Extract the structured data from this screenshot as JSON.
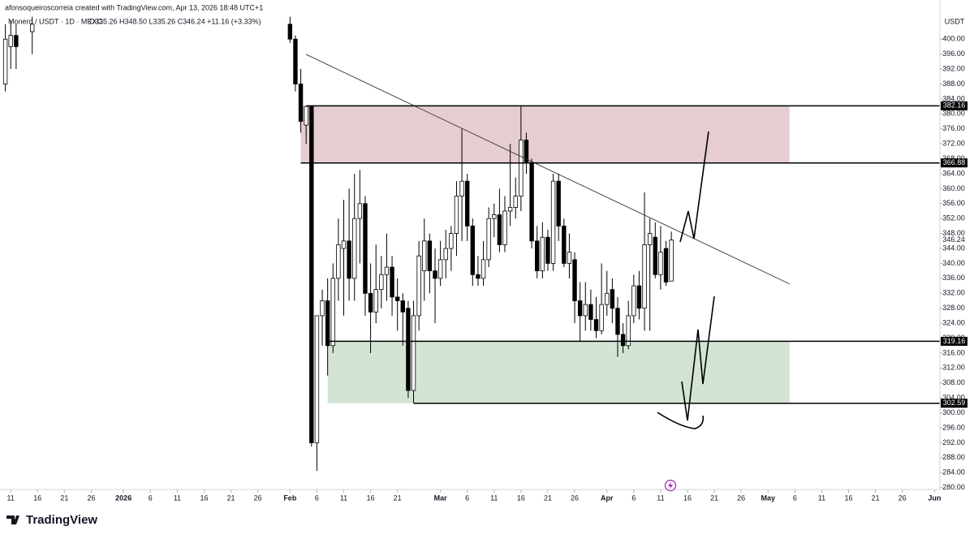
{
  "chart_data": {
    "type": "candlestick",
    "attribution": "afonsoqueiroscorreia created with TradingView.com, Apr 13, 2026 18:48 UTC+1",
    "title": "Monero / USDT · 1D · MEXC",
    "ohlc_text": "O335.26 H348.50 L335.26 C346.24 +11.16 (+3.33%)",
    "axis_unit": "USDT",
    "brand": "TradingView",
    "grid": false,
    "up_color": "#ffffff",
    "down_color": "#000000",
    "x": [
      "2025-12-10",
      "2025-12-11",
      "2025-12-12",
      "2025-12-15",
      "2026-02-01",
      "2026-02-02",
      "2026-02-03",
      "2026-02-04",
      "2026-02-05",
      "2026-02-06",
      "2026-02-07",
      "2026-02-08",
      "2026-02-09",
      "2026-02-10",
      "2026-02-11",
      "2026-02-12",
      "2026-02-13",
      "2026-02-14",
      "2026-02-15",
      "2026-02-16",
      "2026-02-17",
      "2026-02-18",
      "2026-02-19",
      "2026-02-20",
      "2026-02-21",
      "2026-02-22",
      "2026-02-23",
      "2026-02-24",
      "2026-02-25",
      "2026-02-26",
      "2026-02-27",
      "2026-02-28",
      "2026-03-01",
      "2026-03-02",
      "2026-03-03",
      "2026-03-04",
      "2026-03-05",
      "2026-03-06",
      "2026-03-07",
      "2026-03-08",
      "2026-03-09",
      "2026-03-10",
      "2026-03-11",
      "2026-03-12",
      "2026-03-13",
      "2026-03-14",
      "2026-03-15",
      "2026-03-16",
      "2026-03-17",
      "2026-03-18",
      "2026-03-19",
      "2026-03-20",
      "2026-03-21",
      "2026-03-22",
      "2026-03-23",
      "2026-03-24",
      "2026-03-25",
      "2026-03-26",
      "2026-03-27",
      "2026-03-28",
      "2026-03-29",
      "2026-03-30",
      "2026-03-31",
      "2026-04-01",
      "2026-04-02",
      "2026-04-03",
      "2026-04-04",
      "2026-04-05",
      "2026-04-06",
      "2026-04-07",
      "2026-04-08",
      "2026-04-09",
      "2026-04-10",
      "2026-04-11",
      "2026-04-12",
      "2026-04-13"
    ],
    "open": [
      388,
      398,
      401,
      402,
      404,
      400,
      388,
      377,
      382,
      292,
      326,
      330,
      318,
      336,
      344,
      346,
      336,
      352,
      356,
      332,
      327,
      333,
      337,
      339,
      331,
      330,
      328,
      306,
      326,
      338,
      346,
      338,
      336,
      341,
      344,
      348,
      358,
      362,
      350,
      337,
      336,
      341,
      352,
      353,
      345,
      354,
      355,
      358,
      373,
      367,
      346,
      338,
      347,
      340,
      362,
      350,
      340,
      341,
      330,
      326,
      329,
      325,
      322,
      329,
      333,
      328,
      321,
      318,
      326,
      334,
      328,
      345,
      347,
      337,
      344,
      335.26
    ],
    "high": [
      404,
      405,
      404,
      406,
      406,
      401,
      392,
      382.2,
      382,
      326,
      333,
      336,
      340,
      352,
      357,
      360,
      364,
      365,
      358,
      340,
      345,
      342,
      348,
      342,
      336,
      332,
      330,
      330,
      346,
      352,
      348,
      344,
      346,
      349,
      350,
      362,
      376,
      364,
      352,
      342,
      346,
      355,
      356,
      360,
      358,
      372,
      363,
      382.2,
      375,
      368,
      350,
      351,
      349,
      364,
      364,
      352,
      348,
      343,
      335,
      335,
      333,
      331,
      340,
      338,
      336,
      331,
      324,
      330,
      337,
      338,
      359,
      352,
      351,
      350,
      346,
      348.5
    ],
    "low": [
      386,
      392,
      392,
      396,
      399,
      386,
      375,
      372,
      291,
      284.5,
      318,
      310,
      316,
      330,
      326,
      330,
      330,
      340,
      326,
      316,
      324,
      328,
      330,
      326,
      322,
      318,
      304,
      302.6,
      322,
      330,
      332,
      324,
      334,
      336,
      338,
      342,
      346,
      346,
      334,
      334,
      334,
      339,
      347,
      343,
      343,
      350,
      352,
      354,
      364,
      344,
      336,
      336,
      338,
      338,
      346,
      339,
      336,
      324,
      319,
      322,
      322,
      320,
      321,
      326,
      324,
      315,
      316,
      317,
      324,
      325,
      322,
      322,
      336,
      333,
      334,
      335.26
    ],
    "close": [
      400,
      401,
      398,
      404,
      400,
      388,
      378,
      382,
      292,
      326,
      330,
      318,
      336,
      345,
      346,
      336,
      352,
      356,
      332,
      327,
      333,
      337,
      339,
      331,
      330,
      327,
      306,
      326,
      342,
      346,
      338,
      336,
      341,
      344,
      348,
      358,
      362,
      350,
      337,
      336,
      341,
      352,
      353,
      345,
      354,
      355,
      358,
      373,
      367,
      346,
      338,
      347,
      340,
      362,
      350,
      340,
      343,
      330,
      326,
      329,
      325,
      322,
      329,
      332,
      328,
      321,
      318,
      326,
      334,
      328,
      345,
      348,
      337,
      343,
      335,
      346.24
    ],
    "xlim": [
      "2025-12-09",
      "2026-06-02"
    ],
    "xticks": [
      {
        "value": "2025-12-11",
        "label": "11"
      },
      {
        "value": "2025-12-16",
        "label": "16"
      },
      {
        "value": "2025-12-21",
        "label": "21"
      },
      {
        "value": "2025-12-26",
        "label": "26"
      },
      {
        "value": "2026-01-01",
        "label": "2026"
      },
      {
        "value": "2026-01-06",
        "label": "6"
      },
      {
        "value": "2026-01-11",
        "label": "11"
      },
      {
        "value": "2026-01-16",
        "label": "16"
      },
      {
        "value": "2026-01-21",
        "label": "21"
      },
      {
        "value": "2026-01-26",
        "label": "26"
      },
      {
        "value": "2026-02-01",
        "label": "Feb"
      },
      {
        "value": "2026-02-06",
        "label": "6"
      },
      {
        "value": "2026-02-11",
        "label": "11"
      },
      {
        "value": "2026-02-16",
        "label": "16"
      },
      {
        "value": "2026-02-21",
        "label": "21"
      },
      {
        "value": "2026-03-01",
        "label": "Mar"
      },
      {
        "value": "2026-03-06",
        "label": "6"
      },
      {
        "value": "2026-03-11",
        "label": "11"
      },
      {
        "value": "2026-03-16",
        "label": "16"
      },
      {
        "value": "2026-03-21",
        "label": "21"
      },
      {
        "value": "2026-03-26",
        "label": "26"
      },
      {
        "value": "2026-04-01",
        "label": "Apr"
      },
      {
        "value": "2026-04-06",
        "label": "6"
      },
      {
        "value": "2026-04-11",
        "label": "11"
      },
      {
        "value": "2026-04-16",
        "label": "16"
      },
      {
        "value": "2026-04-21",
        "label": "21"
      },
      {
        "value": "2026-04-26",
        "label": "26"
      },
      {
        "value": "2026-05-01",
        "label": "May"
      },
      {
        "value": "2026-05-06",
        "label": "6"
      },
      {
        "value": "2026-05-11",
        "label": "11"
      },
      {
        "value": "2026-05-16",
        "label": "16"
      },
      {
        "value": "2026-05-21",
        "label": "21"
      },
      {
        "value": "2026-05-26",
        "label": "26"
      },
      {
        "value": "2026-06-01",
        "label": "Jun"
      }
    ],
    "ylim": [
      279.5,
      408.3
    ],
    "yticks": [
      {
        "value": 280,
        "label": "280.00"
      },
      {
        "value": 284,
        "label": "284.00"
      },
      {
        "value": 288,
        "label": "288.00"
      },
      {
        "value": 292,
        "label": "292.00"
      },
      {
        "value": 296,
        "label": "296.00"
      },
      {
        "value": 300,
        "label": "300.00"
      },
      {
        "value": 304,
        "label": "304.00"
      },
      {
        "value": 308,
        "label": "308.00"
      },
      {
        "value": 312,
        "label": "312.00"
      },
      {
        "value": 316,
        "label": "316.00"
      },
      {
        "value": 320,
        "label": "320.00"
      },
      {
        "value": 324,
        "label": "324.00"
      },
      {
        "value": 328,
        "label": "328.00"
      },
      {
        "value": 332,
        "label": "332.00"
      },
      {
        "value": 336,
        "label": "336.00"
      },
      {
        "value": 340,
        "label": "340.00"
      },
      {
        "value": 344,
        "label": "344.00"
      },
      {
        "value": 348,
        "label": "348.00"
      },
      {
        "value": 352,
        "label": "352.00"
      },
      {
        "value": 356,
        "label": "356.00"
      },
      {
        "value": 360,
        "label": "360.00"
      },
      {
        "value": 364,
        "label": "364.00"
      },
      {
        "value": 368,
        "label": "368.00"
      },
      {
        "value": 372,
        "label": "372.00"
      },
      {
        "value": 376,
        "label": "376.00"
      },
      {
        "value": 380,
        "label": "380.00"
      },
      {
        "value": 384,
        "label": "384.00"
      },
      {
        "value": 388,
        "label": "388.00"
      },
      {
        "value": 392,
        "label": "392.00"
      },
      {
        "value": 396,
        "label": "396.00"
      },
      {
        "value": 400,
        "label": "400.00"
      }
    ],
    "zones": [
      {
        "top": 382.16,
        "bottom": 366.88,
        "start": "2026-02-03",
        "end": "2026-05-05",
        "color": "#e5cdd0"
      },
      {
        "top": 319.16,
        "bottom": 302.59,
        "start": "2026-02-08",
        "end": "2026-05-05",
        "color": "#d3e4d5"
      }
    ],
    "levels": [
      {
        "value": 382.16,
        "start": "2026-02-04"
      },
      {
        "value": 366.88,
        "start": "2026-02-03"
      },
      {
        "value": 319.16,
        "start": "2026-02-08"
      },
      {
        "value": 302.59,
        "start": "2026-02-24"
      }
    ],
    "trendline": {
      "x": [
        "2026-02-04",
        "2026-05-05"
      ],
      "y": [
        395.9,
        334.5
      ]
    }
  }
}
